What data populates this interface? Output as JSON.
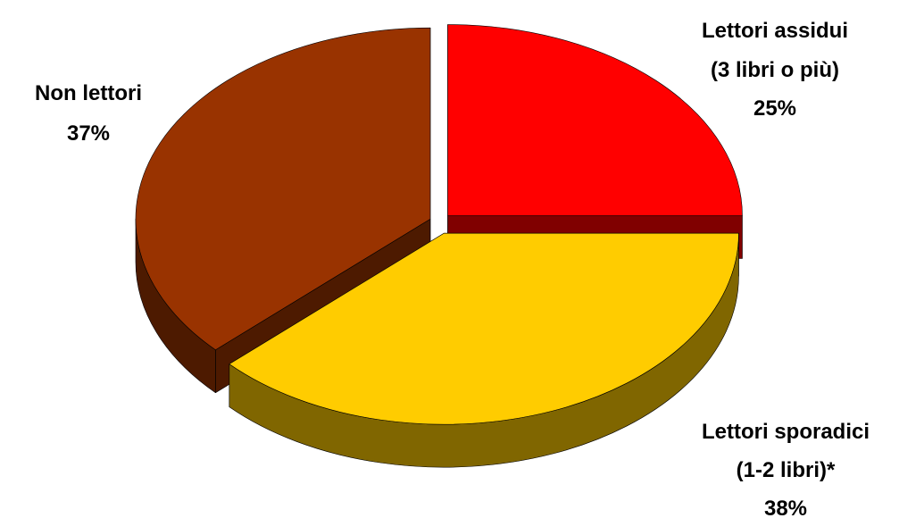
{
  "chart_data": {
    "type": "pie",
    "three_d": true,
    "exploded": true,
    "legend": "none",
    "start_angle_deg": 90,
    "direction": "clockwise",
    "slices": [
      {
        "label_lines": [
          "Lettori assidui",
          "(3 libri o più)"
        ],
        "value": 25,
        "value_label": "25%",
        "color": "#FF0000",
        "side_color": "#800000"
      },
      {
        "label_lines": [
          "Lettori sporadici",
          "(1-2 libri)*"
        ],
        "value": 38,
        "value_label": "38%",
        "color": "#FFCC00",
        "side_color": "#806600"
      },
      {
        "label_lines": [
          "Non lettori"
        ],
        "value": 37,
        "value_label": "37%",
        "color": "#993300",
        "side_color": "#4D1A00"
      }
    ]
  }
}
